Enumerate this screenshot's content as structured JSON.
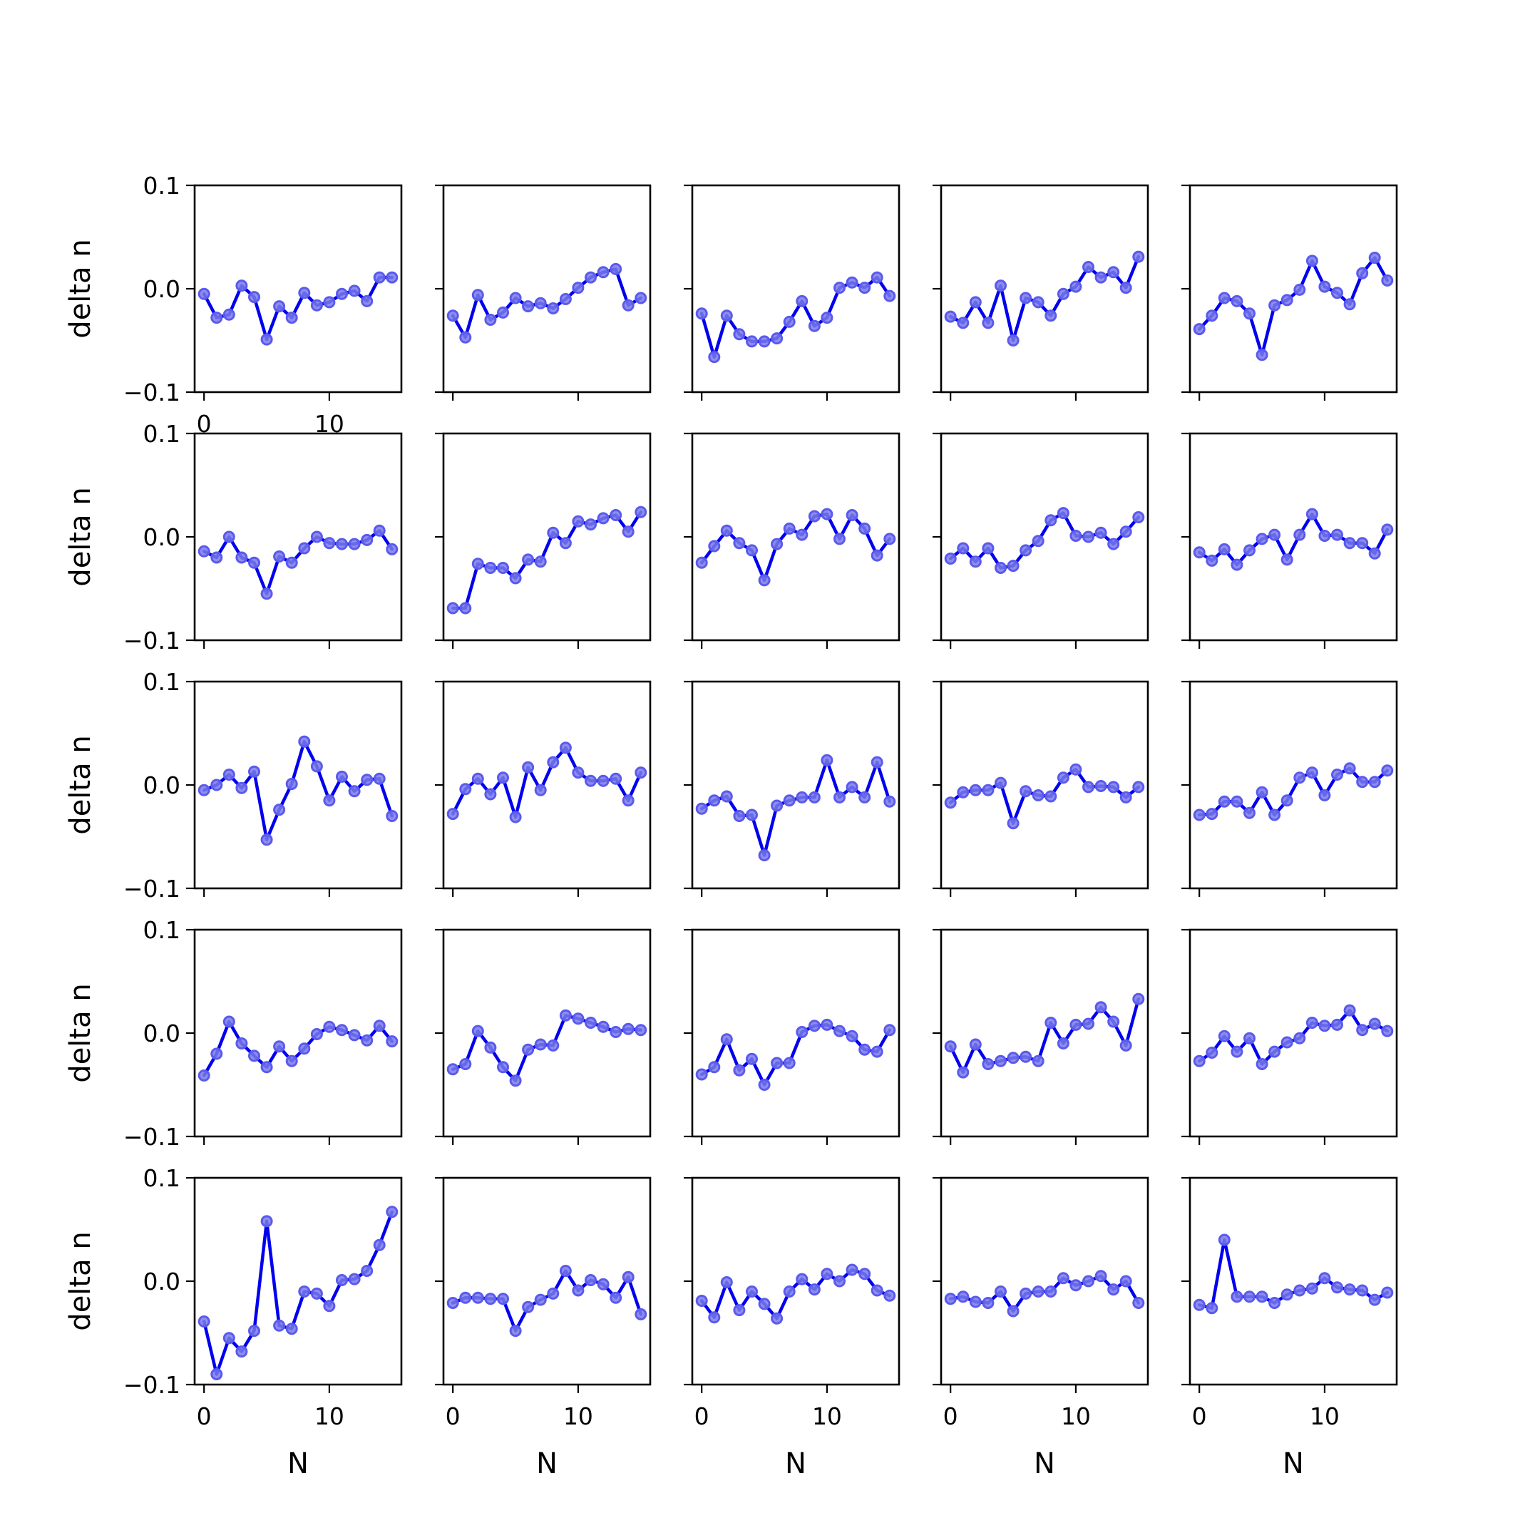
{
  "colors": {
    "line": "#0000ee",
    "marker_fill": "#7a7aea",
    "marker_edge": "#5a5aee"
  },
  "chart_data": [
    {
      "type": "line",
      "row": 0,
      "col": 0,
      "x": [
        0,
        1,
        2,
        3,
        4,
        5,
        6,
        7,
        8,
        9,
        10,
        11,
        12,
        13,
        14,
        15
      ],
      "values": [
        -0.005,
        -0.028,
        -0.025,
        0.003,
        -0.008,
        -0.049,
        -0.017,
        -0.028,
        -0.004,
        -0.016,
        -0.013,
        -0.005,
        -0.002,
        -0.012,
        0.011,
        0.011
      ],
      "xlim": [
        -0.75,
        15.75
      ],
      "ylim": [
        -0.1,
        0.1
      ],
      "xticks": [
        "0",
        "10"
      ],
      "yticks": [
        "0.1",
        "0.0",
        "−0.1"
      ],
      "xlabel": "",
      "ylabel": "delta n"
    },
    {
      "type": "line",
      "row": 0,
      "col": 1,
      "x": [
        0,
        1,
        2,
        3,
        4,
        5,
        6,
        7,
        8,
        9,
        10,
        11,
        12,
        13,
        14,
        15
      ],
      "values": [
        -0.026,
        -0.047,
        -0.006,
        -0.03,
        -0.023,
        -0.009,
        -0.017,
        -0.014,
        -0.019,
        -0.01,
        0.001,
        0.011,
        0.016,
        0.019,
        -0.016,
        -0.009
      ],
      "xlim": [
        -0.75,
        15.75
      ],
      "ylim": [
        -0.1,
        0.1
      ],
      "xticks": [],
      "yticks": [],
      "xlabel": "",
      "ylabel": ""
    },
    {
      "type": "line",
      "row": 0,
      "col": 2,
      "x": [
        0,
        1,
        2,
        3,
        4,
        5,
        6,
        7,
        8,
        9,
        10,
        11,
        12,
        13,
        14,
        15
      ],
      "values": [
        -0.024,
        -0.066,
        -0.026,
        -0.044,
        -0.051,
        -0.051,
        -0.048,
        -0.032,
        -0.012,
        -0.036,
        -0.028,
        0.001,
        0.006,
        0.001,
        0.011,
        -0.007
      ],
      "xlim": [
        -0.75,
        15.75
      ],
      "ylim": [
        -0.1,
        0.1
      ],
      "xticks": [],
      "yticks": [],
      "xlabel": "",
      "ylabel": ""
    },
    {
      "type": "line",
      "row": 0,
      "col": 3,
      "x": [
        0,
        1,
        2,
        3,
        4,
        5,
        6,
        7,
        8,
        9,
        10,
        11,
        12,
        13,
        14,
        15
      ],
      "values": [
        -0.027,
        -0.033,
        -0.013,
        -0.033,
        0.003,
        -0.05,
        -0.009,
        -0.013,
        -0.026,
        -0.005,
        0.002,
        0.021,
        0.011,
        0.016,
        0.001,
        0.031
      ],
      "xlim": [
        -0.75,
        15.75
      ],
      "ylim": [
        -0.1,
        0.1
      ],
      "xticks": [],
      "yticks": [],
      "xlabel": "",
      "ylabel": ""
    },
    {
      "type": "line",
      "row": 0,
      "col": 4,
      "x": [
        0,
        1,
        2,
        3,
        4,
        5,
        6,
        7,
        8,
        9,
        10,
        11,
        12,
        13,
        14,
        15
      ],
      "values": [
        -0.039,
        -0.026,
        -0.009,
        -0.012,
        -0.024,
        -0.064,
        -0.016,
        -0.011,
        -0.001,
        0.027,
        0.002,
        -0.004,
        -0.015,
        0.015,
        0.03,
        0.008
      ],
      "xlim": [
        -0.75,
        15.75
      ],
      "ylim": [
        -0.1,
        0.1
      ],
      "xticks": [],
      "yticks": [],
      "xlabel": "",
      "ylabel": ""
    },
    {
      "type": "line",
      "row": 1,
      "col": 0,
      "x": [
        0,
        1,
        2,
        3,
        4,
        5,
        6,
        7,
        8,
        9,
        10,
        11,
        12,
        13,
        14,
        15
      ],
      "values": [
        -0.014,
        -0.02,
        0.0,
        -0.02,
        -0.025,
        -0.055,
        -0.019,
        -0.025,
        -0.011,
        0.0,
        -0.006,
        -0.007,
        -0.007,
        -0.003,
        0.006,
        -0.012
      ],
      "xlim": [
        -0.75,
        15.75
      ],
      "ylim": [
        -0.1,
        0.1
      ],
      "xticks": [],
      "yticks": [
        "0.1",
        "0.0",
        "−0.1"
      ],
      "xlabel": "",
      "ylabel": "delta n"
    },
    {
      "type": "line",
      "row": 1,
      "col": 1,
      "x": [
        0,
        1,
        2,
        3,
        4,
        5,
        6,
        7,
        8,
        9,
        10,
        11,
        12,
        13,
        14,
        15
      ],
      "values": [
        -0.069,
        -0.069,
        -0.026,
        -0.03,
        -0.03,
        -0.04,
        -0.022,
        -0.024,
        0.004,
        -0.006,
        0.015,
        0.012,
        0.018,
        0.021,
        0.005,
        0.024
      ],
      "xlim": [
        -0.75,
        15.75
      ],
      "ylim": [
        -0.1,
        0.1
      ],
      "xticks": [],
      "yticks": [],
      "xlabel": "",
      "ylabel": ""
    },
    {
      "type": "line",
      "row": 1,
      "col": 2,
      "x": [
        0,
        1,
        2,
        3,
        4,
        5,
        6,
        7,
        8,
        9,
        10,
        11,
        12,
        13,
        14,
        15
      ],
      "values": [
        -0.025,
        -0.009,
        0.006,
        -0.006,
        -0.013,
        -0.042,
        -0.007,
        0.008,
        0.002,
        0.02,
        0.022,
        -0.002,
        0.021,
        0.008,
        -0.018,
        -0.002
      ],
      "xlim": [
        -0.75,
        15.75
      ],
      "ylim": [
        -0.1,
        0.1
      ],
      "xticks": [],
      "yticks": [],
      "xlabel": "",
      "ylabel": ""
    },
    {
      "type": "line",
      "row": 1,
      "col": 3,
      "x": [
        0,
        1,
        2,
        3,
        4,
        5,
        6,
        7,
        8,
        9,
        10,
        11,
        12,
        13,
        14,
        15
      ],
      "values": [
        -0.021,
        -0.011,
        -0.024,
        -0.011,
        -0.03,
        -0.028,
        -0.013,
        -0.004,
        0.016,
        0.023,
        0.001,
        0.0,
        0.004,
        -0.007,
        0.005,
        0.019
      ],
      "xlim": [
        -0.75,
        15.75
      ],
      "ylim": [
        -0.1,
        0.1
      ],
      "xticks": [],
      "yticks": [],
      "xlabel": "",
      "ylabel": ""
    },
    {
      "type": "line",
      "row": 1,
      "col": 4,
      "x": [
        0,
        1,
        2,
        3,
        4,
        5,
        6,
        7,
        8,
        9,
        10,
        11,
        12,
        13,
        14,
        15
      ],
      "values": [
        -0.015,
        -0.023,
        -0.012,
        -0.027,
        -0.013,
        -0.002,
        0.002,
        -0.022,
        0.002,
        0.022,
        0.001,
        0.002,
        -0.006,
        -0.006,
        -0.016,
        0.007
      ],
      "xlim": [
        -0.75,
        15.75
      ],
      "ylim": [
        -0.1,
        0.1
      ],
      "xticks": [],
      "yticks": [],
      "xlabel": "",
      "ylabel": ""
    },
    {
      "type": "line",
      "row": 2,
      "col": 0,
      "x": [
        0,
        1,
        2,
        3,
        4,
        5,
        6,
        7,
        8,
        9,
        10,
        11,
        12,
        13,
        14,
        15
      ],
      "values": [
        -0.005,
        0.0,
        0.01,
        -0.003,
        0.013,
        -0.053,
        -0.024,
        0.001,
        0.042,
        0.018,
        -0.015,
        0.008,
        -0.006,
        0.005,
        0.006,
        -0.03
      ],
      "xlim": [
        -0.75,
        15.75
      ],
      "ylim": [
        -0.1,
        0.1
      ],
      "xticks": [],
      "yticks": [
        "0.1",
        "0.0",
        "−0.1"
      ],
      "xlabel": "",
      "ylabel": "delta n"
    },
    {
      "type": "line",
      "row": 2,
      "col": 1,
      "x": [
        0,
        1,
        2,
        3,
        4,
        5,
        6,
        7,
        8,
        9,
        10,
        11,
        12,
        13,
        14,
        15
      ],
      "values": [
        -0.028,
        -0.004,
        0.006,
        -0.009,
        0.007,
        -0.031,
        0.017,
        -0.005,
        0.022,
        0.036,
        0.012,
        0.004,
        0.004,
        0.006,
        -0.015,
        0.012
      ],
      "xlim": [
        -0.75,
        15.75
      ],
      "ylim": [
        -0.1,
        0.1
      ],
      "xticks": [],
      "yticks": [],
      "xlabel": "",
      "ylabel": ""
    },
    {
      "type": "line",
      "row": 2,
      "col": 2,
      "x": [
        0,
        1,
        2,
        3,
        4,
        5,
        6,
        7,
        8,
        9,
        10,
        11,
        12,
        13,
        14,
        15
      ],
      "values": [
        -0.023,
        -0.015,
        -0.011,
        -0.03,
        -0.029,
        -0.068,
        -0.02,
        -0.015,
        -0.012,
        -0.012,
        0.024,
        -0.012,
        -0.002,
        -0.012,
        0.022,
        -0.016
      ],
      "xlim": [
        -0.75,
        15.75
      ],
      "ylim": [
        -0.1,
        0.1
      ],
      "xticks": [],
      "yticks": [],
      "xlabel": "",
      "ylabel": ""
    },
    {
      "type": "line",
      "row": 2,
      "col": 3,
      "x": [
        0,
        1,
        2,
        3,
        4,
        5,
        6,
        7,
        8,
        9,
        10,
        11,
        12,
        13,
        14,
        15
      ],
      "values": [
        -0.017,
        -0.007,
        -0.005,
        -0.005,
        0.002,
        -0.037,
        -0.006,
        -0.01,
        -0.011,
        0.007,
        0.015,
        -0.002,
        -0.001,
        -0.002,
        -0.012,
        -0.002
      ],
      "xlim": [
        -0.75,
        15.75
      ],
      "ylim": [
        -0.1,
        0.1
      ],
      "xticks": [],
      "yticks": [],
      "xlabel": "",
      "ylabel": ""
    },
    {
      "type": "line",
      "row": 2,
      "col": 4,
      "x": [
        0,
        1,
        2,
        3,
        4,
        5,
        6,
        7,
        8,
        9,
        10,
        11,
        12,
        13,
        14,
        15
      ],
      "values": [
        -0.029,
        -0.028,
        -0.016,
        -0.016,
        -0.027,
        -0.007,
        -0.029,
        -0.015,
        0.007,
        0.012,
        -0.01,
        0.01,
        0.016,
        0.003,
        0.003,
        0.014
      ],
      "xlim": [
        -0.75,
        15.75
      ],
      "ylim": [
        -0.1,
        0.1
      ],
      "xticks": [],
      "yticks": [],
      "xlabel": "",
      "ylabel": ""
    },
    {
      "type": "line",
      "row": 3,
      "col": 0,
      "x": [
        0,
        1,
        2,
        3,
        4,
        5,
        6,
        7,
        8,
        9,
        10,
        11,
        12,
        13,
        14,
        15
      ],
      "values": [
        -0.041,
        -0.02,
        0.011,
        -0.01,
        -0.022,
        -0.033,
        -0.013,
        -0.027,
        -0.015,
        -0.001,
        0.006,
        0.003,
        -0.002,
        -0.007,
        0.007,
        -0.008
      ],
      "xlim": [
        -0.75,
        15.75
      ],
      "ylim": [
        -0.1,
        0.1
      ],
      "xticks": [],
      "yticks": [
        "0.1",
        "0.0",
        "−0.1"
      ],
      "xlabel": "",
      "ylabel": "delta n"
    },
    {
      "type": "line",
      "row": 3,
      "col": 1,
      "x": [
        0,
        1,
        2,
        3,
        4,
        5,
        6,
        7,
        8,
        9,
        10,
        11,
        12,
        13,
        14,
        15
      ],
      "values": [
        -0.035,
        -0.03,
        0.002,
        -0.014,
        -0.033,
        -0.046,
        -0.016,
        -0.011,
        -0.012,
        0.017,
        0.014,
        0.01,
        0.006,
        0.001,
        0.004,
        0.003
      ],
      "xlim": [
        -0.75,
        15.75
      ],
      "ylim": [
        -0.1,
        0.1
      ],
      "xticks": [],
      "yticks": [],
      "xlabel": "",
      "ylabel": ""
    },
    {
      "type": "line",
      "row": 3,
      "col": 2,
      "x": [
        0,
        1,
        2,
        3,
        4,
        5,
        6,
        7,
        8,
        9,
        10,
        11,
        12,
        13,
        14,
        15
      ],
      "values": [
        -0.04,
        -0.033,
        -0.006,
        -0.036,
        -0.025,
        -0.05,
        -0.029,
        -0.029,
        0.001,
        0.007,
        0.008,
        0.002,
        -0.003,
        -0.016,
        -0.018,
        0.003
      ],
      "xlim": [
        -0.75,
        15.75
      ],
      "ylim": [
        -0.1,
        0.1
      ],
      "xticks": [],
      "yticks": [],
      "xlabel": "",
      "ylabel": ""
    },
    {
      "type": "line",
      "row": 3,
      "col": 3,
      "x": [
        0,
        1,
        2,
        3,
        4,
        5,
        6,
        7,
        8,
        9,
        10,
        11,
        12,
        13,
        14,
        15
      ],
      "values": [
        -0.013,
        -0.038,
        -0.011,
        -0.03,
        -0.027,
        -0.024,
        -0.023,
        -0.027,
        0.01,
        -0.01,
        0.008,
        0.009,
        0.025,
        0.011,
        -0.012,
        0.033
      ],
      "xlim": [
        -0.75,
        15.75
      ],
      "ylim": [
        -0.1,
        0.1
      ],
      "xticks": [],
      "yticks": [],
      "xlabel": "",
      "ylabel": ""
    },
    {
      "type": "line",
      "row": 3,
      "col": 4,
      "x": [
        0,
        1,
        2,
        3,
        4,
        5,
        6,
        7,
        8,
        9,
        10,
        11,
        12,
        13,
        14,
        15
      ],
      "values": [
        -0.027,
        -0.019,
        -0.003,
        -0.018,
        -0.005,
        -0.03,
        -0.018,
        -0.009,
        -0.005,
        0.01,
        0.007,
        0.008,
        0.022,
        0.003,
        0.009,
        0.002
      ],
      "xlim": [
        -0.75,
        15.75
      ],
      "ylim": [
        -0.1,
        0.1
      ],
      "xticks": [],
      "yticks": [],
      "xlabel": "",
      "ylabel": ""
    },
    {
      "type": "line",
      "row": 4,
      "col": 0,
      "x": [
        0,
        1,
        2,
        3,
        4,
        5,
        6,
        7,
        8,
        9,
        10,
        11,
        12,
        13,
        14,
        15
      ],
      "values": [
        -0.039,
        -0.09,
        -0.055,
        -0.068,
        -0.048,
        0.058,
        -0.043,
        -0.046,
        -0.01,
        -0.012,
        -0.024,
        0.001,
        0.002,
        0.01,
        0.035,
        0.067
      ],
      "xlim": [
        -0.75,
        15.75
      ],
      "ylim": [
        -0.1,
        0.1
      ],
      "xticks": [
        "0",
        "10"
      ],
      "yticks": [
        "0.1",
        "0.0",
        "−0.1"
      ],
      "xlabel": "N",
      "ylabel": "delta n"
    },
    {
      "type": "line",
      "row": 4,
      "col": 1,
      "x": [
        0,
        1,
        2,
        3,
        4,
        5,
        6,
        7,
        8,
        9,
        10,
        11,
        12,
        13,
        14,
        15
      ],
      "values": [
        -0.021,
        -0.016,
        -0.016,
        -0.017,
        -0.017,
        -0.048,
        -0.025,
        -0.018,
        -0.012,
        0.01,
        -0.009,
        0.001,
        -0.003,
        -0.016,
        0.004,
        -0.032
      ],
      "xlim": [
        -0.75,
        15.75
      ],
      "ylim": [
        -0.1,
        0.1
      ],
      "xticks": [
        "0",
        "10"
      ],
      "yticks": [],
      "xlabel": "N",
      "ylabel": ""
    },
    {
      "type": "line",
      "row": 4,
      "col": 2,
      "x": [
        0,
        1,
        2,
        3,
        4,
        5,
        6,
        7,
        8,
        9,
        10,
        11,
        12,
        13,
        14,
        15
      ],
      "values": [
        -0.019,
        -0.035,
        -0.001,
        -0.028,
        -0.01,
        -0.022,
        -0.036,
        -0.01,
        0.002,
        -0.008,
        0.007,
        0.0,
        0.011,
        0.007,
        -0.009,
        -0.014
      ],
      "xlim": [
        -0.75,
        15.75
      ],
      "ylim": [
        -0.1,
        0.1
      ],
      "xticks": [
        "0",
        "10"
      ],
      "yticks": [],
      "xlabel": "N",
      "ylabel": ""
    },
    {
      "type": "line",
      "row": 4,
      "col": 3,
      "x": [
        0,
        1,
        2,
        3,
        4,
        5,
        6,
        7,
        8,
        9,
        10,
        11,
        12,
        13,
        14,
        15
      ],
      "values": [
        -0.017,
        -0.015,
        -0.02,
        -0.021,
        -0.01,
        -0.029,
        -0.012,
        -0.01,
        -0.01,
        0.003,
        -0.004,
        0.0,
        0.005,
        -0.008,
        0.0,
        -0.021
      ],
      "xlim": [
        -0.75,
        15.75
      ],
      "ylim": [
        -0.1,
        0.1
      ],
      "xticks": [
        "0",
        "10"
      ],
      "yticks": [],
      "xlabel": "N",
      "ylabel": ""
    },
    {
      "type": "line",
      "row": 4,
      "col": 4,
      "x": [
        0,
        1,
        2,
        3,
        4,
        5,
        6,
        7,
        8,
        9,
        10,
        11,
        12,
        13,
        14,
        15
      ],
      "values": [
        -0.023,
        -0.026,
        0.04,
        -0.015,
        -0.015,
        -0.015,
        -0.021,
        -0.013,
        -0.009,
        -0.007,
        0.003,
        -0.006,
        -0.008,
        -0.009,
        -0.018,
        -0.011
      ],
      "xlim": [
        -0.75,
        15.75
      ],
      "ylim": [
        -0.1,
        0.1
      ],
      "xticks": [
        "0",
        "10"
      ],
      "yticks": [],
      "xlabel": "N",
      "ylabel": ""
    }
  ]
}
